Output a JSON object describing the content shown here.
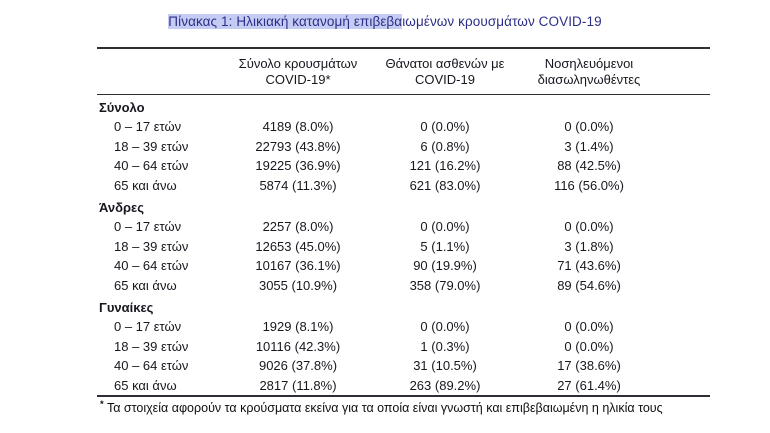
{
  "title": {
    "highlighted": "Πίνακας 1: Ηλικιακή κατανομή επιβεβα",
    "rest": "ιωμένων κρουσμάτων COVID-19"
  },
  "table": {
    "columns": [
      {
        "line1": "Σύνολο κρουσμάτων",
        "line2": "COVID-19*"
      },
      {
        "line1": "Θάνατοι ασθενών με",
        "line2": "COVID-19"
      },
      {
        "line1": "Νοσηλευόμενοι",
        "line2": "διασωληνωθέντες"
      }
    ],
    "sections": [
      {
        "name": "Σύνολο",
        "rows": [
          {
            "label": "0 – 17 ετών",
            "cases": "4189 (8.0%)",
            "deaths": "0 (0.0%)",
            "intubated": "0 (0.0%)"
          },
          {
            "label": "18 – 39 ετών",
            "cases": "22793 (43.8%)",
            "deaths": "6 (0.8%)",
            "intubated": "3 (1.4%)"
          },
          {
            "label": "40 – 64 ετών",
            "cases": "19225 (36.9%)",
            "deaths": "121 (16.2%)",
            "intubated": "88 (42.5%)"
          },
          {
            "label": "65 και άνω",
            "cases": "5874 (11.3%)",
            "deaths": "621 (83.0%)",
            "intubated": "116 (56.0%)"
          }
        ]
      },
      {
        "name": "Άνδρες",
        "rows": [
          {
            "label": "0 – 17 ετών",
            "cases": "2257 (8.0%)",
            "deaths": "0 (0.0%)",
            "intubated": "0 (0.0%)"
          },
          {
            "label": "18 – 39 ετών",
            "cases": "12653 (45.0%)",
            "deaths": "5 (1.1%)",
            "intubated": "3 (1.8%)"
          },
          {
            "label": "40 – 64 ετών",
            "cases": "10167 (36.1%)",
            "deaths": "90 (19.9%)",
            "intubated": "71 (43.6%)"
          },
          {
            "label": "65 και άνω",
            "cases": "3055 (10.9%)",
            "deaths": "358 (79.0%)",
            "intubated": "89 (54.6%)"
          }
        ]
      },
      {
        "name": "Γυναίκες",
        "rows": [
          {
            "label": "0 – 17 ετών",
            "cases": "1929 (8.1%)",
            "deaths": "0 (0.0%)",
            "intubated": "0 (0.0%)"
          },
          {
            "label": "18 – 39 ετών",
            "cases": "10116 (42.3%)",
            "deaths": "1 (0.3%)",
            "intubated": "0 (0.0%)"
          },
          {
            "label": "40 – 64 ετών",
            "cases": "9026 (37.8%)",
            "deaths": "31 (10.5%)",
            "intubated": "17 (38.6%)"
          },
          {
            "label": "65 και άνω",
            "cases": "2817 (11.8%)",
            "deaths": "263 (89.2%)",
            "intubated": "27 (61.4%)"
          }
        ]
      }
    ]
  },
  "footnote": {
    "marker": "*",
    "text": "Τα στοιχεία αφορούν τα κρούσματα εκείνα για τα οποία είναι γνωστή και επιβεβαιωμένη η ηλικία τους"
  },
  "colors": {
    "title_text": "#2c2f87",
    "selection_highlight": "#c5cbf2",
    "body_text": "#17171f",
    "rule": "#2e2e34"
  }
}
